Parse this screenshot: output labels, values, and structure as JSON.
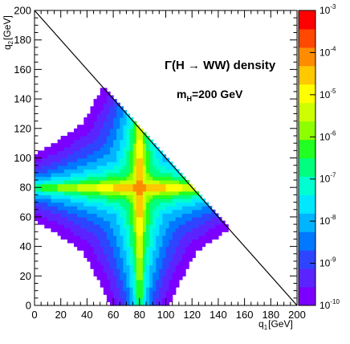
{
  "chart_data": {
    "type": "heatmap",
    "title_main": "Γ(H → WW) density",
    "title_sub": "m",
    "title_sub_index": "H",
    "title_sub_value": "=200 GeV",
    "xlabel_symbol": "q",
    "xlabel_index": "1",
    "xlabel_unit": "[GeV]",
    "ylabel_symbol": "q",
    "ylabel_index": "2",
    "ylabel_unit": "[GeV]",
    "xlim": [
      0,
      200
    ],
    "ylim": [
      0,
      200
    ],
    "xticks": [
      0,
      20,
      40,
      60,
      80,
      100,
      120,
      140,
      160,
      180,
      200
    ],
    "yticks": [
      0,
      20,
      40,
      60,
      80,
      100,
      120,
      140,
      160,
      180,
      200
    ],
    "peak": {
      "x": 80,
      "y": 80
    },
    "kinematic_limit": "q1 + q2 = 200",
    "colorbar": {
      "scale": "log",
      "range": [
        1e-10,
        0.001
      ],
      "ticks": [
        {
          "base": "10",
          "exp": "-10"
        },
        {
          "base": "10",
          "exp": "-9"
        },
        {
          "base": "10",
          "exp": "-8"
        },
        {
          "base": "10",
          "exp": "-7"
        },
        {
          "base": "10",
          "exp": "-6"
        },
        {
          "base": "10",
          "exp": "-5"
        },
        {
          "base": "10",
          "exp": "-4"
        },
        {
          "base": "10",
          "exp": "-3"
        }
      ]
    },
    "palette": [
      "#7b00ff",
      "#5b24ff",
      "#2e45ff",
      "#0078ff",
      "#00b4ff",
      "#00e7ff",
      "#00ffd0",
      "#00ff7f",
      "#22ff22",
      "#8dff00",
      "#ceff00",
      "#ffff00",
      "#ffc800",
      "#ff8c00",
      "#ff4800",
      "#ff0000"
    ],
    "grid": false
  }
}
